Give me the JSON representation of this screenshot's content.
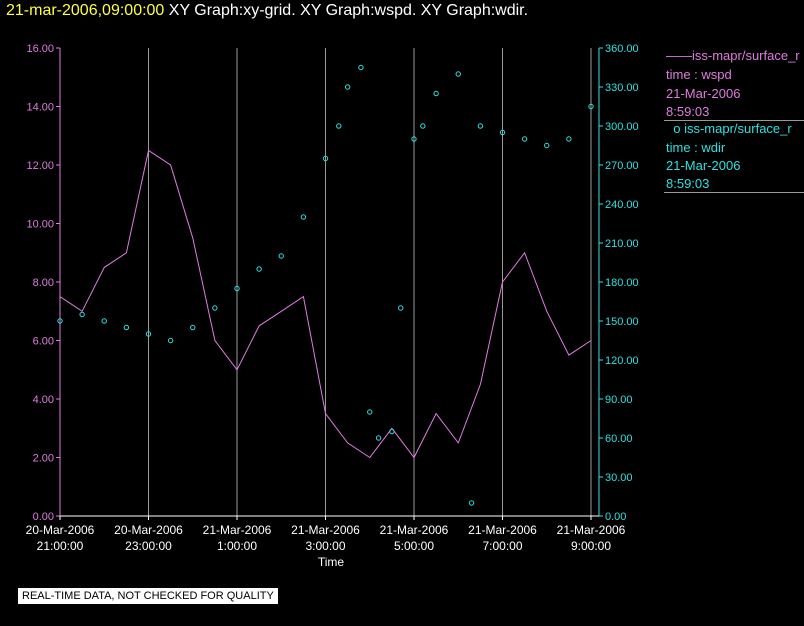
{
  "header": {
    "date_time": "21-mar-2006,09:00:00",
    "graph_titles": "XY Graph:xy-grid.  XY Graph:wspd.  XY Graph:wdir."
  },
  "legend": {
    "wspd": {
      "series": "iss-mapr/surface_r",
      "variable": "time : wspd",
      "date": "21-Mar-2006",
      "time": "8:59:03"
    },
    "wdir": {
      "series": "iss-mapr/surface_r",
      "variable": "time : wdir",
      "date": "21-Mar-2006",
      "time": "8:59:03"
    }
  },
  "footer_note": "REAL-TIME DATA, NOT CHECKED FOR QUALITY",
  "colors": {
    "wspd": "#e07be0",
    "wdir": "#30e0e0",
    "grid": "#9a9a9a",
    "background": "#000000"
  },
  "chart_data": {
    "type": "line",
    "xlabel": "Time",
    "grid": true,
    "legend_position": "right",
    "x_range_hours": [
      21.0,
      33.0
    ],
    "x_ticks": [
      {
        "hour": 21,
        "date": "20-Mar-2006",
        "time": "21:00:00"
      },
      {
        "hour": 23,
        "date": "20-Mar-2006",
        "time": "23:00:00"
      },
      {
        "hour": 25,
        "date": "21-Mar-2006",
        "time": "1:00:00"
      },
      {
        "hour": 27,
        "date": "21-Mar-2006",
        "time": "3:00:00"
      },
      {
        "hour": 29,
        "date": "21-Mar-2006",
        "time": "5:00:00"
      },
      {
        "hour": 31,
        "date": "21-Mar-2006",
        "time": "7:00:00"
      },
      {
        "hour": 33,
        "date": "21-Mar-2006",
        "time": "9:00:00"
      }
    ],
    "y_left": {
      "range": [
        0,
        16
      ],
      "ticks": [
        "0.00",
        "2.00",
        "4.00",
        "6.00",
        "8.00",
        "10.00",
        "12.00",
        "14.00",
        "16.00"
      ]
    },
    "y_right": {
      "range": [
        0,
        360
      ],
      "ticks": [
        "0.00",
        "30.00",
        "60.00",
        "90.00",
        "120.00",
        "150.00",
        "180.00",
        "210.00",
        "240.00",
        "270.00",
        "300.00",
        "330.00",
        "360.00"
      ]
    },
    "series": [
      {
        "name": "iss-mapr/surface_r",
        "variable": "wspd",
        "style": "line",
        "axis": "left",
        "x": [
          21.0,
          21.5,
          22.0,
          22.5,
          23.0,
          23.5,
          24.0,
          24.5,
          25.0,
          25.5,
          26.0,
          26.5,
          27.0,
          27.5,
          28.0,
          28.5,
          29.0,
          29.5,
          30.0,
          30.5,
          31.0,
          31.5,
          32.0,
          32.5,
          33.0
        ],
        "y": [
          7.5,
          7.0,
          8.5,
          9.0,
          12.5,
          12.0,
          9.5,
          6.0,
          5.0,
          6.5,
          7.0,
          7.5,
          3.5,
          2.5,
          2.0,
          3.0,
          2.0,
          3.5,
          2.5,
          4.5,
          8.0,
          9.0,
          7.0,
          5.5,
          6.0
        ]
      },
      {
        "name": "iss-mapr/surface_r",
        "variable": "wdir",
        "style": "scatter",
        "axis": "right",
        "x": [
          21.0,
          21.5,
          22.0,
          22.5,
          23.0,
          23.5,
          24.0,
          24.5,
          25.0,
          25.5,
          26.0,
          26.5,
          27.0,
          27.3,
          27.5,
          27.8,
          28.0,
          28.2,
          28.5,
          28.7,
          29.0,
          29.2,
          29.5,
          30.0,
          30.3,
          30.5,
          31.0,
          31.5,
          32.0,
          32.5,
          33.0
        ],
        "y": [
          150,
          155,
          150,
          145,
          140,
          135,
          145,
          160,
          175,
          190,
          200,
          230,
          275,
          300,
          330,
          345,
          80,
          60,
          65,
          160,
          290,
          300,
          325,
          340,
          10,
          300,
          295,
          290,
          285,
          290,
          315
        ]
      }
    ]
  }
}
